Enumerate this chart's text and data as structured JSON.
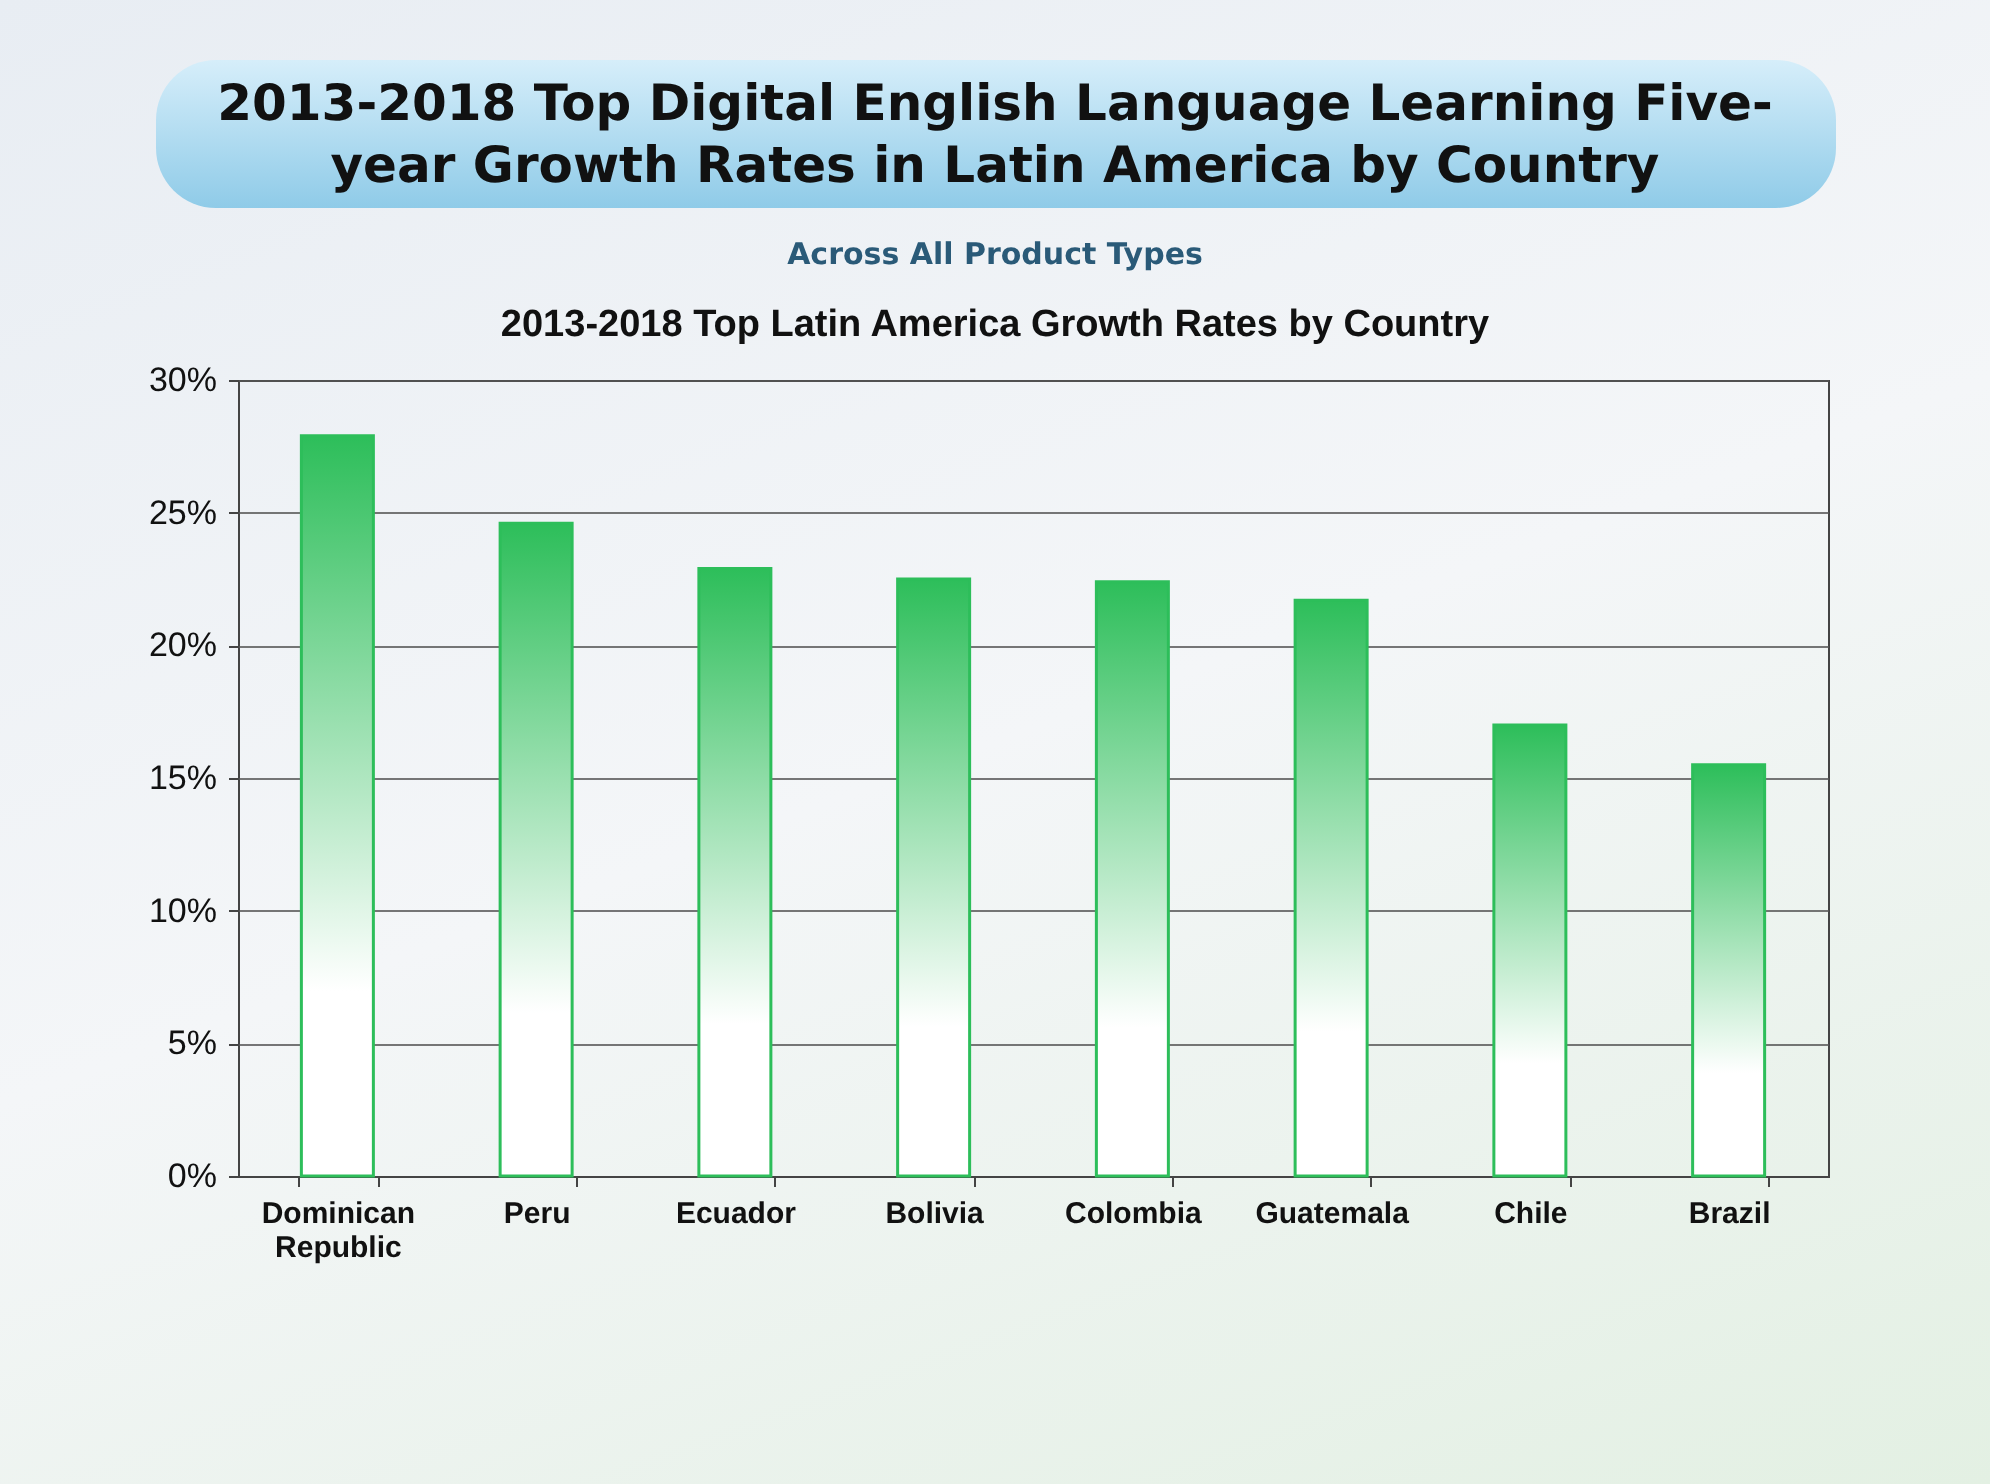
{
  "chart_data": {
    "type": "bar",
    "title": "2013-2018 Top Digital English Language Learning Five-year Growth Rates in Latin America by Country",
    "subtitle": "Across All Product Types",
    "annotations": [
      "2013-2018 Top Latin America Growth Rates by Country"
    ],
    "categories": [
      "Dominican Republic",
      "Peru",
      "Ecuador",
      "Bolivia",
      "Colombia",
      "Guatemala",
      "Chile",
      "Brazil"
    ],
    "values": [
      27.9,
      24.6,
      22.9,
      22.5,
      22.4,
      21.7,
      17.0,
      15.5
    ],
    "color": "#2dbe5a",
    "ylim": [
      0,
      30
    ],
    "yticks": [
      {
        "value": 0,
        "label": "0%"
      },
      {
        "value": 5,
        "label": "5%"
      },
      {
        "value": 10,
        "label": "10%"
      },
      {
        "value": 15,
        "label": "15%"
      },
      {
        "value": 20,
        "label": "20%"
      },
      {
        "value": 25,
        "label": "25%"
      },
      {
        "value": 30,
        "label": "30%"
      }
    ],
    "grid": "y"
  }
}
